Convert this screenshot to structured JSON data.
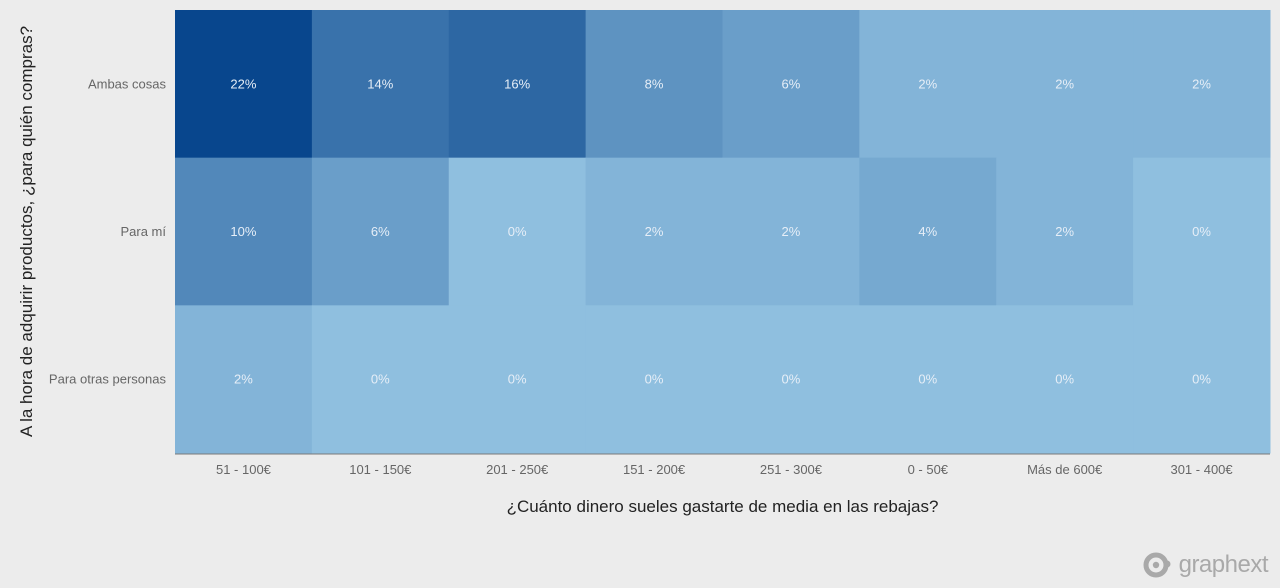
{
  "chart_data": {
    "type": "heatmap",
    "xlabel": "¿Cuánto dinero sueles gastarte de media en las rebajas?",
    "ylabel": "A la hora de adquirir productos, ¿para quién compras?",
    "x_categories": [
      "51 - 100€",
      "101 - 150€",
      "201 - 250€",
      "151 - 200€",
      "251 - 300€",
      "0 - 50€",
      "Más de 600€",
      "301 - 400€"
    ],
    "y_categories": [
      "Ambas cosas",
      "Para mí",
      "Para otras personas"
    ],
    "values": [
      [
        22,
        14,
        16,
        8,
        6,
        2,
        2,
        2
      ],
      [
        10,
        6,
        0,
        2,
        2,
        4,
        2,
        0
      ],
      [
        2,
        0,
        0,
        0,
        0,
        0,
        0,
        0
      ]
    ],
    "value_suffix": "%",
    "color_low": "#8fbfdf",
    "color_high": "#08468d"
  },
  "brand": {
    "name": "graphext",
    "logo_icon": "graphext-logo-icon"
  }
}
